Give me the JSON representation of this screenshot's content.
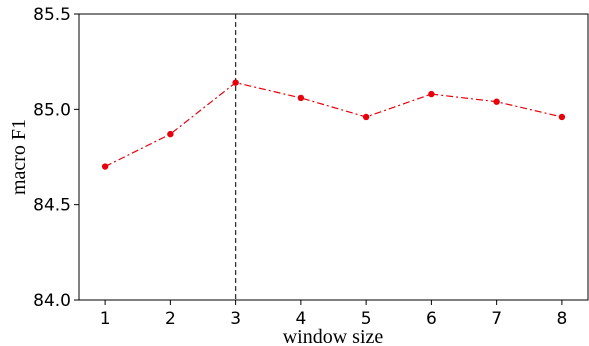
{
  "chart_data": {
    "type": "line",
    "xlabel": "window size",
    "ylabel": "macro F1",
    "x": [
      1,
      2,
      3,
      4,
      5,
      6,
      7,
      8
    ],
    "y_ticks": [
      "84.0",
      "84.5",
      "85.0",
      "85.5"
    ],
    "ylim": [
      84.0,
      85.5
    ],
    "xlim": [
      0.6,
      8.4
    ],
    "series": [
      {
        "values": [
          84.7,
          84.87,
          85.14,
          85.06,
          84.96,
          85.08,
          85.04,
          84.96
        ]
      }
    ],
    "reference_line_x": 3,
    "series_color": "#e8000b",
    "reference_line_color": "#333333",
    "grid": false
  }
}
